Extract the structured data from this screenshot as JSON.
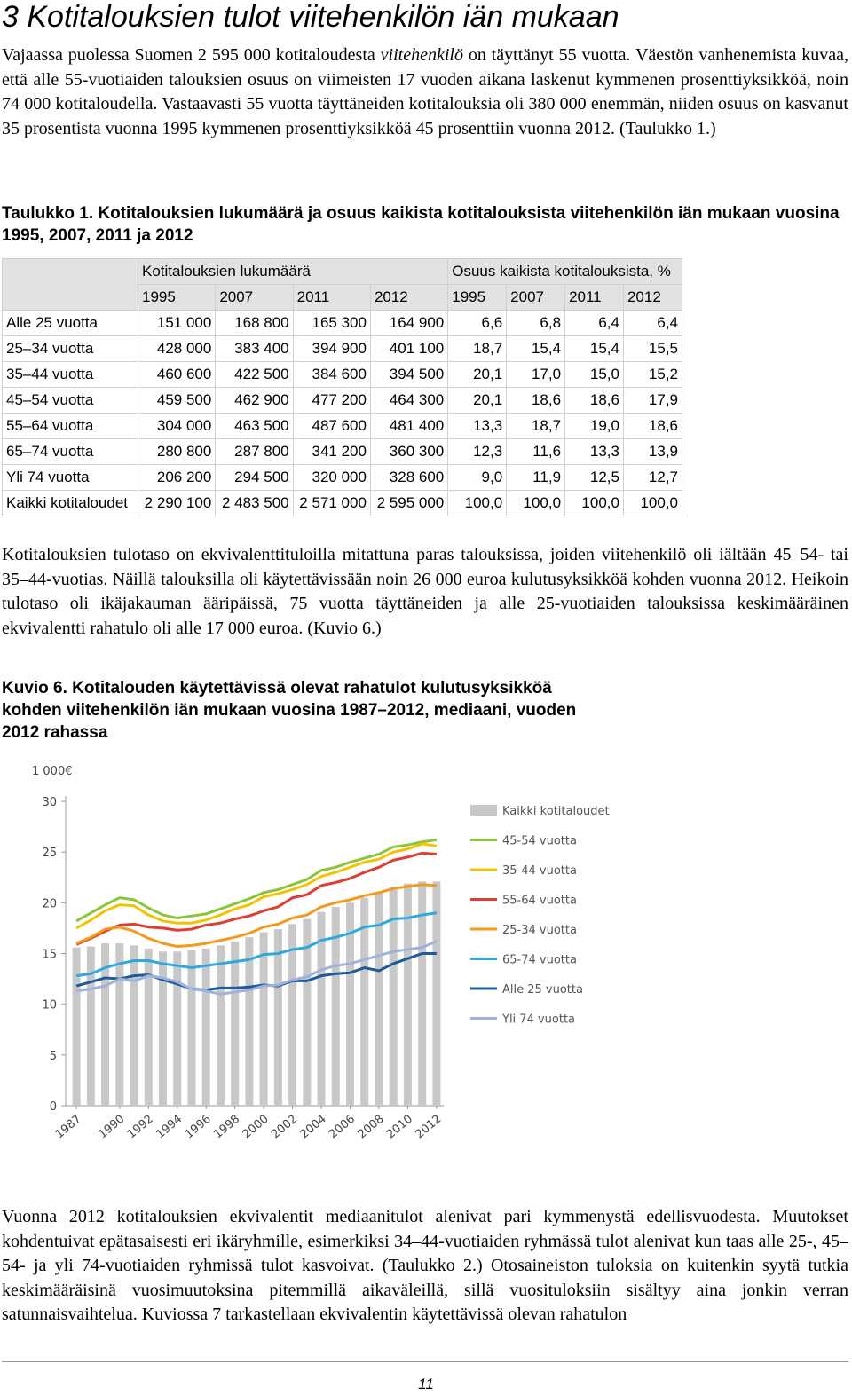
{
  "header": {
    "title": "3 Kotitalouksien tulot viitehenkilön iän mukaan"
  },
  "paragraph_1": [
    "Vajaassa puolessa Suomen 2 595 000 kotitaloudesta ",
    "viitehenkilö",
    " on täyttänyt 55 vuotta. Väestön vanhenemista kuvaa, että alle 55-vuotiaiden talouksien osuus on viimeisten 17 vuoden aikana laskenut kymmenen prosenttiyksikköä, noin 74 000 kotitaloudella. Vastaavasti 55 vuotta täyttäneiden kotitalouksia oli 380 000 enemmän, niiden osuus on kasvanut 35 prosentista vuonna 1995 kymmenen prosenttiyksikköä 45 prosenttiin vuonna 2012. (Taulukko 1.)"
  ],
  "table": {
    "caption": "Taulukko 1. Kotitalouksien lukumäärä ja osuus kaikista kotitalouksista viitehenkilön iän mukaan vuosina 1995, 2007, 2011 ja 2012",
    "group_headers": [
      "Kotitalouksien lukumäärä",
      "Osuus kaikista kotitalouksista, %"
    ],
    "years": [
      "1995",
      "2007",
      "2011",
      "2012",
      "1995",
      "2007",
      "2011",
      "2012"
    ],
    "rows": [
      [
        "Alle 25 vuotta",
        "151 000",
        "168 800",
        "165 300",
        "164 900",
        "6,6",
        "6,8",
        "6,4",
        "6,4"
      ],
      [
        "25–34 vuotta",
        "428 000",
        "383 400",
        "394 900",
        "401 100",
        "18,7",
        "15,4",
        "15,4",
        "15,5"
      ],
      [
        "35–44 vuotta",
        "460 600",
        "422 500",
        "384 600",
        "394 500",
        "20,1",
        "17,0",
        "15,0",
        "15,2"
      ],
      [
        "45–54 vuotta",
        "459 500",
        "462 900",
        "477 200",
        "464 300",
        "20,1",
        "18,6",
        "18,6",
        "17,9"
      ],
      [
        "55–64 vuotta",
        "304 000",
        "463 500",
        "487 600",
        "481 400",
        "13,3",
        "18,7",
        "19,0",
        "18,6"
      ],
      [
        "65–74 vuotta",
        "280 800",
        "287 800",
        "341 200",
        "360 300",
        "12,3",
        "11,6",
        "13,3",
        "13,9"
      ],
      [
        "Yli 74 vuotta",
        "206 200",
        "294 500",
        "320 000",
        "328 600",
        "9,0",
        "11,9",
        "12,5",
        "12,7"
      ],
      [
        "Kaikki kotitaloudet",
        "2 290 100",
        "2 483 500",
        "2 571 000",
        "2 595 000",
        "100,0",
        "100,0",
        "100,0",
        "100,0"
      ]
    ]
  },
  "paragraph_2": "Kotitalouksien tulotaso on ekvivalenttituloilla mitattuna paras talouksissa, joiden viitehenkilö oli iältään 45–54- tai 35–44-vuotias. Näillä talouksilla oli käytettävissään noin 26 000 euroa kulutusyksikköä kohden vuonna 2012. Heikoin tulotaso oli ikäjakauman ääripäissä, 75 vuotta täyttäneiden ja alle 25-vuotiaiden talouksissa keskimääräinen ekvivalentti rahatulo oli alle 17 000 euroa. (Kuvio 6.)",
  "chart_data": {
    "type": "combo",
    "title": "Kuvio 6. Kotitalouden käytettävissä olevat rahatulot kulutusyksikköä kohden viitehenkilön iän mukaan vuosina 1987–2012, mediaani, vuoden 2012 rahassa",
    "y_label": "1 000€",
    "x": [
      1987,
      1988,
      1989,
      1990,
      1991,
      1992,
      1993,
      1994,
      1995,
      1996,
      1997,
      1998,
      1999,
      2000,
      2001,
      2002,
      2003,
      2004,
      2005,
      2006,
      2007,
      2008,
      2009,
      2010,
      2011,
      2012
    ],
    "xticks": [
      1987,
      1990,
      1992,
      1994,
      1996,
      1998,
      2000,
      2002,
      2004,
      2006,
      2008,
      2010,
      2012
    ],
    "ylim": [
      0,
      30
    ],
    "yticks": [
      0,
      5,
      10,
      15,
      20,
      25,
      30
    ],
    "series": [
      {
        "name": "Kaikki kotitaloudet",
        "type": "bar",
        "color": "#c8c8c8",
        "values": [
          15.6,
          15.7,
          16.0,
          16.0,
          15.8,
          15.5,
          15.2,
          15.2,
          15.3,
          15.5,
          15.8,
          16.2,
          16.6,
          17.1,
          17.4,
          17.9,
          18.4,
          19.1,
          19.6,
          20.0,
          20.5,
          21.0,
          21.6,
          21.9,
          22.1,
          22.1
        ]
      },
      {
        "name": "45-54 vuotta",
        "type": "line",
        "color": "#8cc43c",
        "values": [
          18.2,
          19.0,
          19.8,
          20.5,
          20.3,
          19.5,
          18.8,
          18.5,
          18.7,
          18.9,
          19.4,
          19.9,
          20.4,
          21.0,
          21.3,
          21.8,
          22.3,
          23.2,
          23.5,
          24.0,
          24.4,
          24.8,
          25.5,
          25.7,
          26.0,
          26.2
        ]
      },
      {
        "name": "35-44 vuotta",
        "type": "line",
        "color": "#f2c300",
        "values": [
          17.5,
          18.3,
          19.2,
          19.8,
          19.7,
          18.8,
          18.2,
          18.0,
          18.0,
          18.3,
          18.8,
          19.4,
          19.8,
          20.6,
          20.9,
          21.3,
          21.8,
          22.6,
          23.0,
          23.5,
          24.0,
          24.3,
          25.0,
          25.3,
          25.8,
          25.6
        ]
      },
      {
        "name": "55-64 vuotta",
        "type": "line",
        "color": "#e03c31",
        "values": [
          15.9,
          16.5,
          17.2,
          17.8,
          17.9,
          17.6,
          17.5,
          17.3,
          17.4,
          17.8,
          18.0,
          18.4,
          18.7,
          19.2,
          19.6,
          20.5,
          20.8,
          21.7,
          22.0,
          22.4,
          23.0,
          23.5,
          24.2,
          24.5,
          24.9,
          24.8
        ]
      },
      {
        "name": "25-34 vuotta",
        "type": "line",
        "color": "#f39a1e",
        "values": [
          16.0,
          16.6,
          17.4,
          17.6,
          17.2,
          16.5,
          16.0,
          15.7,
          15.8,
          16.0,
          16.3,
          16.6,
          17.0,
          17.6,
          17.9,
          18.5,
          18.8,
          19.6,
          20.0,
          20.3,
          20.7,
          21.0,
          21.4,
          21.6,
          21.8,
          21.7
        ]
      },
      {
        "name": "65-74 vuotta",
        "type": "line",
        "color": "#2fa8df",
        "values": [
          12.8,
          13.0,
          13.6,
          14.0,
          14.3,
          14.3,
          14.0,
          13.8,
          13.6,
          13.8,
          14.0,
          14.2,
          14.4,
          14.9,
          15.0,
          15.4,
          15.6,
          16.3,
          16.6,
          17.0,
          17.6,
          17.8,
          18.4,
          18.5,
          18.8,
          19.0
        ]
      },
      {
        "name": "Alle 25 vuotta",
        "type": "line",
        "color": "#1d5b9c",
        "values": [
          11.8,
          12.2,
          12.6,
          12.5,
          12.8,
          12.9,
          12.4,
          12.0,
          11.5,
          11.4,
          11.6,
          11.6,
          11.7,
          11.9,
          11.8,
          12.3,
          12.3,
          12.8,
          13.0,
          13.1,
          13.6,
          13.3,
          14.0,
          14.5,
          15.0,
          15.0
        ]
      },
      {
        "name": "Yli 74 vuotta",
        "type": "line",
        "color": "#9fb2da",
        "values": [
          11.3,
          11.5,
          11.8,
          12.5,
          12.3,
          12.8,
          12.6,
          12.2,
          11.5,
          11.3,
          11.0,
          11.2,
          11.4,
          11.8,
          11.9,
          12.4,
          12.7,
          13.4,
          13.8,
          14.0,
          14.4,
          14.8,
          15.2,
          15.4,
          15.6,
          16.2
        ]
      }
    ]
  },
  "paragraph_3": "Vuonna 2012 kotitalouksien ekvivalentit mediaanitulot alenivat pari kymmenystä edellisvuodesta. Muutokset kohdentuivat epätasaisesti eri ikäryhmille, esimerkiksi 34–44-vuotiaiden ryhmässä tulot alenivat kun taas alle 25-, 45–54- ja yli 74-vuotiaiden ryhmissä tulot kasvoivat. (Taulukko 2.) Otosaineiston tuloksia on kuitenkin syytä tutkia keskimääräisinä vuosimuutoksina pitemmillä aikaväleillä, sillä vuosituloksiin sisältyy aina jonkin verran satunnaisvaihtelua. Kuviossa 7 tarkastellaan ekvivalentin käytettävissä olevan rahatulon",
  "footer": {
    "page_number": "11"
  }
}
